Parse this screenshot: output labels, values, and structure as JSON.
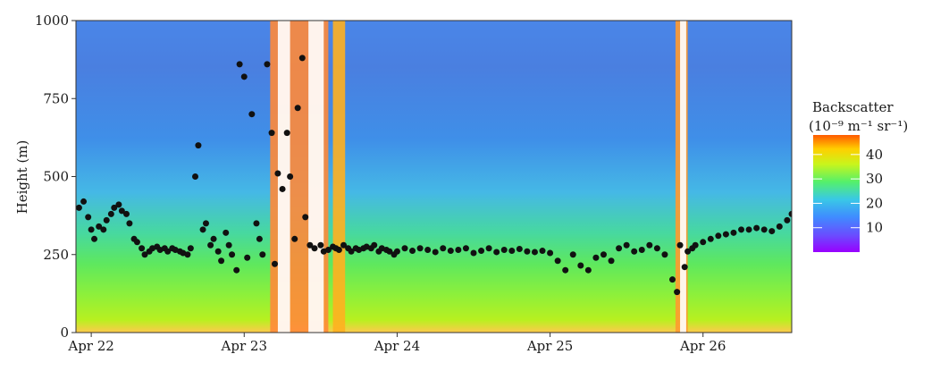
{
  "chart_data": {
    "type": "heatmap",
    "title": "",
    "xlabel": "",
    "ylabel": "Height (m)",
    "x_ticks": [
      "Apr 22",
      "Apr 23",
      "Apr 24",
      "Apr 25",
      "Apr 26"
    ],
    "x_range_days": [
      21.9,
      26.58
    ],
    "y_ticks": [
      0,
      250,
      500,
      750,
      1000
    ],
    "ylim": [
      0,
      1000
    ],
    "grid": false,
    "legend": {
      "title_line1": "Backscatter",
      "title_line2": "(10⁻⁹ m⁻¹ sr⁻¹)",
      "ticks": [
        10,
        20,
        30,
        40
      ],
      "range": [
        0,
        48
      ],
      "placement": "right",
      "colormap": [
        "#9900ff",
        "#4f6cff",
        "#3d9cff",
        "#45e6c0",
        "#66ff33",
        "#d9ff1a",
        "#ffd000",
        "#ff6a00"
      ]
    },
    "points_series": {
      "name": "",
      "color": "#111111",
      "x": [
        21.92,
        21.95,
        21.98,
        22.0,
        22.02,
        22.05,
        22.08,
        22.1,
        22.13,
        22.15,
        22.18,
        22.2,
        22.23,
        22.25,
        22.28,
        22.3,
        22.33,
        22.35,
        22.38,
        22.4,
        22.43,
        22.45,
        22.48,
        22.5,
        22.53,
        22.55,
        22.58,
        22.6,
        22.63,
        22.65,
        22.68,
        22.7,
        22.73,
        22.75,
        22.78,
        22.8,
        22.83,
        22.85,
        22.88,
        22.9,
        22.92,
        22.95,
        22.97,
        23.0,
        23.02,
        23.05,
        23.08,
        23.1,
        23.12,
        23.15,
        23.18,
        23.2,
        23.22,
        23.25,
        23.28,
        23.3,
        23.33,
        23.35,
        23.38,
        23.4,
        23.43,
        23.46,
        23.5,
        23.52,
        23.55,
        23.58,
        23.6,
        23.62,
        23.65,
        23.68,
        23.7,
        23.73,
        23.75,
        23.78,
        23.8,
        23.83,
        23.85,
        23.88,
        23.9,
        23.93,
        23.95,
        23.98,
        24.0,
        24.05,
        24.1,
        24.15,
        24.2,
        24.25,
        24.3,
        24.35,
        24.4,
        24.45,
        24.5,
        24.55,
        24.6,
        24.65,
        24.7,
        24.75,
        24.8,
        24.85,
        24.9,
        24.95,
        25.0,
        25.05,
        25.1,
        25.15,
        25.2,
        25.25,
        25.3,
        25.35,
        25.4,
        25.45,
        25.5,
        25.55,
        25.6,
        25.65,
        25.7,
        25.75,
        25.8,
        25.83,
        25.85,
        25.88,
        25.9,
        25.93,
        25.95,
        26.0,
        26.05,
        26.1,
        26.15,
        26.2,
        26.25,
        26.3,
        26.35,
        26.4,
        26.45,
        26.5,
        26.55,
        26.58
      ],
      "y": [
        400,
        420,
        370,
        330,
        300,
        340,
        330,
        360,
        380,
        400,
        410,
        390,
        380,
        350,
        300,
        290,
        270,
        250,
        260,
        270,
        275,
        265,
        270,
        260,
        270,
        265,
        260,
        255,
        250,
        270,
        500,
        600,
        330,
        350,
        280,
        300,
        260,
        230,
        320,
        280,
        250,
        200,
        860,
        820,
        240,
        700,
        350,
        300,
        250,
        860,
        640,
        220,
        510,
        460,
        640,
        500,
        300,
        720,
        880,
        370,
        280,
        270,
        280,
        260,
        265,
        275,
        270,
        265,
        280,
        270,
        260,
        270,
        265,
        270,
        275,
        270,
        280,
        260,
        270,
        265,
        260,
        250,
        260,
        270,
        262,
        270,
        265,
        258,
        270,
        262,
        265,
        270,
        255,
        262,
        270,
        258,
        265,
        262,
        268,
        260,
        258,
        262,
        255,
        230,
        200,
        250,
        215,
        200,
        240,
        250,
        230,
        270,
        280,
        260,
        265,
        280,
        270,
        250,
        170,
        130,
        280,
        210,
        260,
        270,
        280,
        290,
        300,
        310,
        315,
        320,
        330,
        330,
        335,
        330,
        325,
        340,
        360,
        380,
        390,
        395
      ],
      "marker_size": 3.5
    }
  },
  "colors": {
    "background_low": "#5aa8ff",
    "panel_border": "#333333",
    "cloud_white": "#ffffff"
  }
}
